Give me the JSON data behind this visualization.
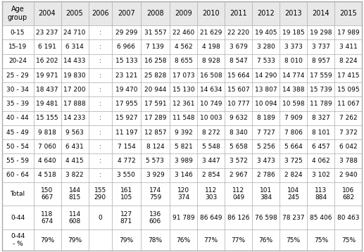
{
  "headers": [
    "Age\ngroup",
    "2004",
    "2005",
    "2006",
    "2007",
    "2008",
    "2009",
    "2010",
    "2011",
    "2012",
    "2013",
    "2014",
    "2015"
  ],
  "rows": [
    [
      "0-15",
      "23 237",
      "24 710",
      ":",
      "29 299",
      "31 557",
      "22 460",
      "21 629",
      "22 220",
      "19 405",
      "19 185",
      "19 298",
      "17 989"
    ],
    [
      "15-19",
      "6 191",
      "6 314",
      ":",
      "6 966",
      "7 139",
      "4 562",
      "4 198",
      "3 679",
      "3 280",
      "3 373",
      "3 737",
      "3 411"
    ],
    [
      "20-24",
      "16 202",
      "14 433",
      ":",
      "15 133",
      "16 258",
      "8 655",
      "8 928",
      "8 547",
      "7 533",
      "8 010",
      "8 957",
      "8 224"
    ],
    [
      "25 - 29",
      "19 971",
      "19 830",
      ":",
      "23 121",
      "25 828",
      "17 073",
      "16 508",
      "15 664",
      "14 290",
      "14 774",
      "17 559",
      "17 415"
    ],
    [
      "30 - 34",
      "18 437",
      "17 200",
      ":",
      "19 470",
      "20 944",
      "15 130",
      "14 634",
      "15 607",
      "13 807",
      "14 388",
      "15 739",
      "15 095"
    ],
    [
      "35 - 39",
      "19 481",
      "17 888",
      ":",
      "17 955",
      "17 591",
      "12 361",
      "10 749",
      "10 777",
      "10 094",
      "10 598",
      "11 789",
      "11 067"
    ],
    [
      "40 - 44",
      "15 155",
      "14 233",
      ":",
      "15 927",
      "17 289",
      "11 548",
      "10 003",
      "9 632",
      "8 189",
      "7 909",
      "8 327",
      "7 262"
    ],
    [
      "45 - 49",
      "9 818",
      "9 563",
      ":",
      "11 197",
      "12 857",
      "9 392",
      "8 272",
      "8 340",
      "7 727",
      "7 806",
      "8 101",
      "7 372"
    ],
    [
      "50 - 54",
      "7 060",
      "6 431",
      ":",
      "7 154",
      "8 124",
      "5 821",
      "5 548",
      "5 658",
      "5 256",
      "5 664",
      "6 457",
      "6 042"
    ],
    [
      "55 - 59",
      "4 640",
      "4 415",
      ":",
      "4 772",
      "5 573",
      "3 989",
      "3 447",
      "3 572",
      "3 473",
      "3 725",
      "4 062",
      "3 788"
    ],
    [
      "60 - 64",
      "4 518",
      "3 822",
      ":",
      "3 550",
      "3 929",
      "3 146",
      "2 854",
      "2 967",
      "2 786",
      "2 824",
      "3 102",
      "2 940"
    ],
    [
      "Total",
      "150\n667",
      "144\n815",
      "155\n290",
      "161\n105",
      "174\n759",
      "120\n374",
      "112\n303",
      "112\n049",
      "101\n384",
      "104\n245",
      "113\n884",
      "106\n682"
    ],
    [
      "0-44",
      "118\n674",
      "114\n608",
      "0",
      "127\n871",
      "136\n606",
      "91 789",
      "86 649",
      "86 126",
      "76 598",
      "78 237",
      "85 406",
      "80 463"
    ],
    [
      "0-44\n- %",
      "79%",
      "79%",
      "",
      "79%",
      "78%",
      "76%",
      "77%",
      "77%",
      "76%",
      "75%",
      "75%",
      "75%"
    ]
  ],
  "col_widths_rel": [
    1.15,
    1.0,
    1.0,
    0.85,
    1.05,
    1.05,
    1.0,
    1.0,
    1.0,
    1.0,
    1.0,
    1.0,
    1.0
  ],
  "row_heights_rel": [
    1.7,
    1.0,
    1.0,
    1.0,
    1.0,
    1.0,
    1.0,
    1.0,
    1.0,
    1.0,
    1.0,
    1.0,
    1.65,
    1.65,
    1.5
  ],
  "header_bg": "#e8e8e8",
  "cell_bg": "#ffffff",
  "border_color": "#aaaaaa",
  "text_color": "#000000",
  "font_size": 6.5,
  "header_font_size": 7.0,
  "fig_width": 5.17,
  "fig_height": 3.58,
  "dpi": 100
}
